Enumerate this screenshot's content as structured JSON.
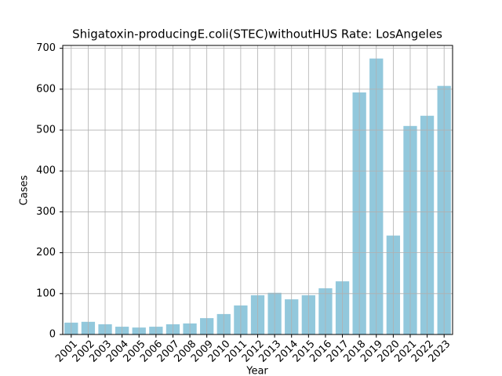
{
  "chart_data": {
    "type": "bar",
    "title": "Shigatoxin-producingE.coli(STEC)withoutHUS Rate: LosAngeles",
    "xlabel": "Year",
    "ylabel": "Cases",
    "categories": [
      "2001",
      "2002",
      "2003",
      "2004",
      "2005",
      "2006",
      "2007",
      "2008",
      "2009",
      "2010",
      "2011",
      "2012",
      "2013",
      "2014",
      "2015",
      "2016",
      "2017",
      "2018",
      "2019",
      "2020",
      "2021",
      "2022",
      "2023"
    ],
    "values": [
      29,
      31,
      25,
      19,
      17,
      19,
      25,
      27,
      40,
      50,
      71,
      96,
      102,
      86,
      96,
      113,
      130,
      592,
      675,
      242,
      510,
      535,
      608
    ],
    "color": "#92c8dc",
    "ylim": [
      0,
      707
    ],
    "yticks": [
      0,
      100,
      200,
      300,
      400,
      500,
      600,
      700
    ],
    "grid": true
  }
}
